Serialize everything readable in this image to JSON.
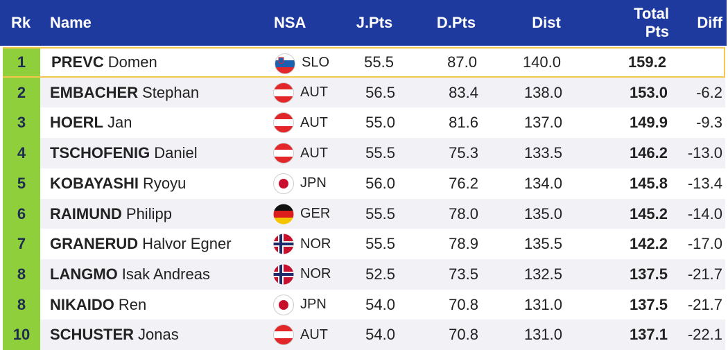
{
  "header": {
    "rank": "Rk",
    "name": "Name",
    "nsa": "NSA",
    "jpts": "J.Pts",
    "dpts": "D.Pts",
    "dist": "Dist",
    "total": "Total Pts",
    "diff": "Diff"
  },
  "rows": [
    {
      "rank": "1",
      "surname": "PREVC",
      "given": "Domen",
      "nsa": "SLO",
      "jpts": "55.5",
      "dpts": "87.0",
      "dist": "140.0",
      "total": "159.2"
    },
    {
      "rank": "2",
      "surname": "EMBACHER",
      "given": "Stephan",
      "nsa": "AUT",
      "jpts": "56.5",
      "dpts": "83.4",
      "dist": "138.0",
      "total": "153.0",
      "diff": "-6.2"
    },
    {
      "rank": "3",
      "surname": "HOERL",
      "given": "Jan",
      "nsa": "AUT",
      "jpts": "55.0",
      "dpts": "81.6",
      "dist": "137.0",
      "total": "149.9",
      "diff": "-9.3"
    },
    {
      "rank": "4",
      "surname": "TSCHOFENIG",
      "given": "Daniel",
      "nsa": "AUT",
      "jpts": "55.5",
      "dpts": "75.3",
      "dist": "133.5",
      "total": "146.2",
      "diff": "-13.0"
    },
    {
      "rank": "5",
      "surname": "KOBAYASHI",
      "given": "Ryoyu",
      "nsa": "JPN",
      "jpts": "56.0",
      "dpts": "76.2",
      "dist": "134.0",
      "total": "145.8",
      "diff": "-13.4"
    },
    {
      "rank": "6",
      "surname": "RAIMUND",
      "given": "Philipp",
      "nsa": "GER",
      "jpts": "55.5",
      "dpts": "78.0",
      "dist": "135.0",
      "total": "145.2",
      "diff": "-14.0"
    },
    {
      "rank": "7",
      "surname": "GRANERUD",
      "given": "Halvor Egner",
      "nsa": "NOR",
      "jpts": "55.5",
      "dpts": "78.9",
      "dist": "135.5",
      "total": "142.2",
      "diff": "-17.0"
    },
    {
      "rank": "8",
      "surname": "LANGMO",
      "given": "Isak Andreas",
      "nsa": "NOR",
      "jpts": "52.5",
      "dpts": "73.5",
      "dist": "132.5",
      "total": "137.5",
      "diff": "-21.7"
    },
    {
      "rank": "8",
      "surname": "NIKAIDO",
      "given": "Ren",
      "nsa": "JPN",
      "jpts": "54.0",
      "dpts": "70.8",
      "dist": "131.0",
      "total": "137.5",
      "diff": "-21.7"
    },
    {
      "rank": "10",
      "surname": "SCHUSTER",
      "given": "Jonas",
      "nsa": "AUT",
      "jpts": "54.0",
      "dpts": "70.8",
      "dist": "131.0",
      "total": "137.1",
      "diff": "-22.1"
    }
  ]
}
